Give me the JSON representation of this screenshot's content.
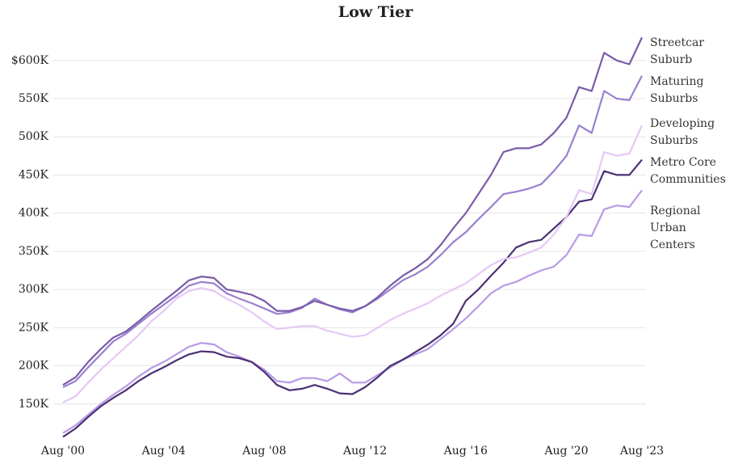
{
  "chart_data": {
    "type": "line",
    "title": "Low Tier",
    "x": [
      "2000-08",
      "2001-02",
      "2001-08",
      "2002-02",
      "2002-08",
      "2003-02",
      "2003-08",
      "2004-02",
      "2004-08",
      "2005-02",
      "2005-08",
      "2006-02",
      "2006-08",
      "2007-02",
      "2007-08",
      "2008-02",
      "2008-08",
      "2009-02",
      "2009-08",
      "2010-02",
      "2010-08",
      "2011-02",
      "2011-08",
      "2012-02",
      "2012-08",
      "2013-02",
      "2013-08",
      "2014-02",
      "2014-08",
      "2015-02",
      "2015-08",
      "2016-02",
      "2016-08",
      "2017-02",
      "2017-08",
      "2018-02",
      "2018-08",
      "2019-02",
      "2019-08",
      "2020-02",
      "2020-08",
      "2021-02",
      "2021-08",
      "2022-02",
      "2022-08",
      "2023-02",
      "2023-08"
    ],
    "xlim": [
      "2000-08",
      "2023-08"
    ],
    "xticks": [
      {
        "value": "2000-08",
        "label": "Aug '00"
      },
      {
        "value": "2004-08",
        "label": "Aug '04"
      },
      {
        "value": "2008-08",
        "label": "Aug '08"
      },
      {
        "value": "2012-08",
        "label": "Aug '12"
      },
      {
        "value": "2016-08",
        "label": "Aug '16"
      },
      {
        "value": "2020-08",
        "label": "Aug '20"
      },
      {
        "value": "2023-08",
        "label": "Aug '23"
      }
    ],
    "ylim": [
      100000,
      640000
    ],
    "yticks": [
      {
        "value": 150000,
        "label": "150K"
      },
      {
        "value": 200000,
        "label": "200K"
      },
      {
        "value": 250000,
        "label": "250K"
      },
      {
        "value": 300000,
        "label": "300K"
      },
      {
        "value": 350000,
        "label": "350K"
      },
      {
        "value": 400000,
        "label": "400K"
      },
      {
        "value": 450000,
        "label": "450K"
      },
      {
        "value": 500000,
        "label": "500K"
      },
      {
        "value": 550000,
        "label": "550K"
      },
      {
        "value": 600000,
        "label": "$600K"
      }
    ],
    "grid": true,
    "series": [
      {
        "name": "Streetcar Suburb",
        "color": "#7a5ca8",
        "values": [
          175000,
          185000,
          205000,
          222000,
          237000,
          245000,
          258000,
          272000,
          285000,
          298000,
          312000,
          317000,
          315000,
          300000,
          297000,
          293000,
          285000,
          272000,
          272000,
          277000,
          285000,
          280000,
          275000,
          272000,
          278000,
          290000,
          305000,
          318000,
          328000,
          340000,
          358000,
          380000,
          400000,
          425000,
          450000,
          480000,
          485000,
          485000,
          490000,
          505000,
          525000,
          565000,
          560000,
          610000,
          600000,
          595000,
          630000
        ]
      },
      {
        "name": "Maturing Suburbs",
        "color": "#9a80cf",
        "values": [
          172000,
          180000,
          198000,
          215000,
          232000,
          242000,
          255000,
          268000,
          280000,
          292000,
          305000,
          310000,
          308000,
          295000,
          288000,
          282000,
          275000,
          268000,
          270000,
          276000,
          288000,
          280000,
          274000,
          270000,
          278000,
          288000,
          300000,
          312000,
          320000,
          330000,
          345000,
          362000,
          375000,
          392000,
          408000,
          425000,
          428000,
          432000,
          438000,
          455000,
          475000,
          515000,
          505000,
          560000,
          550000,
          548000,
          580000
        ]
      },
      {
        "name": "Developing Suburbs",
        "color": "#e6c8f6",
        "values": [
          152000,
          160000,
          178000,
          195000,
          210000,
          225000,
          240000,
          258000,
          272000,
          288000,
          298000,
          302000,
          298000,
          288000,
          280000,
          270000,
          258000,
          248000,
          250000,
          252000,
          252000,
          246000,
          242000,
          238000,
          240000,
          250000,
          260000,
          268000,
          275000,
          282000,
          292000,
          300000,
          308000,
          320000,
          332000,
          340000,
          342000,
          348000,
          355000,
          372000,
          395000,
          430000,
          425000,
          480000,
          475000,
          478000,
          515000
        ]
      },
      {
        "name": "Metro Core Communities",
        "color": "#4b3074",
        "values": [
          107000,
          118000,
          133000,
          147000,
          158000,
          168000,
          180000,
          190000,
          198000,
          207000,
          215000,
          219000,
          218000,
          212000,
          210000,
          205000,
          192000,
          175000,
          168000,
          170000,
          175000,
          170000,
          164000,
          163000,
          172000,
          185000,
          200000,
          208000,
          218000,
          228000,
          240000,
          255000,
          285000,
          300000,
          318000,
          335000,
          355000,
          362000,
          365000,
          380000,
          395000,
          415000,
          418000,
          455000,
          450000,
          450000,
          470000
        ]
      },
      {
        "name": "Regional Urban Centers",
        "color": "#b89be6",
        "values": [
          112000,
          122000,
          136000,
          150000,
          162000,
          173000,
          186000,
          197000,
          205000,
          215000,
          225000,
          230000,
          228000,
          218000,
          212000,
          205000,
          195000,
          180000,
          178000,
          184000,
          184000,
          180000,
          190000,
          178000,
          178000,
          188000,
          198000,
          208000,
          215000,
          222000,
          235000,
          248000,
          262000,
          278000,
          295000,
          305000,
          310000,
          318000,
          325000,
          330000,
          345000,
          372000,
          370000,
          405000,
          410000,
          408000,
          430000
        ]
      }
    ]
  }
}
